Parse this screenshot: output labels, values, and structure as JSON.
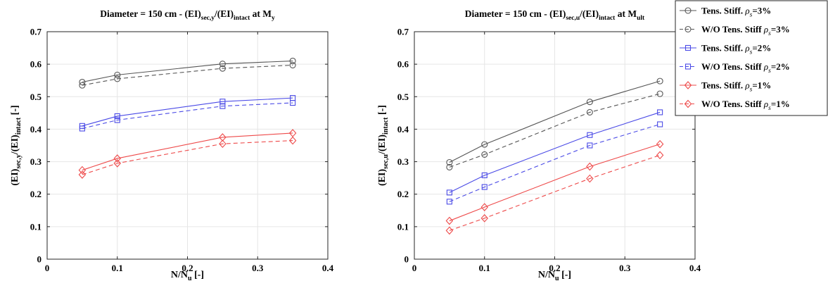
{
  "chart_data": [
    {
      "type": "line",
      "title_main": "Diameter = 150 cm - (EI)",
      "title_sub1": "sec,y",
      "title_mid": "/(EI)",
      "title_sub2": "intact",
      "title_end": " at M",
      "title_sub3": "y",
      "xlabel_main": "N/N",
      "xlabel_sub": "u",
      "xlabel_end": " [-]",
      "ylabel_main": "(EI)",
      "ylabel_sub1": "sec,y",
      "ylabel_mid": "/(EI)",
      "ylabel_sub2": "intact",
      "ylabel_end": " [-]",
      "xlim": [
        0,
        0.4
      ],
      "ylim": [
        0,
        0.7
      ],
      "xticks": [
        "0",
        "0.1",
        "0.2",
        "0.3",
        "0.4"
      ],
      "yticks": [
        "0",
        "0.1",
        "0.2",
        "0.3",
        "0.4",
        "0.5",
        "0.6",
        "0.7"
      ],
      "grid": true,
      "x": [
        0.05,
        0.1,
        0.25,
        0.35
      ],
      "series": [
        {
          "color": "#555555",
          "dash": false,
          "marker": "circle",
          "values": [
            0.545,
            0.567,
            0.601,
            0.61
          ]
        },
        {
          "color": "#555555",
          "dash": true,
          "marker": "circle",
          "values": [
            0.535,
            0.555,
            0.587,
            0.597
          ]
        },
        {
          "color": "#4a4ae6",
          "dash": false,
          "marker": "square",
          "values": [
            0.41,
            0.44,
            0.485,
            0.496
          ]
        },
        {
          "color": "#4a4ae6",
          "dash": true,
          "marker": "square",
          "values": [
            0.402,
            0.428,
            0.471,
            0.481
          ]
        },
        {
          "color": "#ee4a4a",
          "dash": false,
          "marker": "diamond",
          "values": [
            0.274,
            0.31,
            0.375,
            0.388
          ]
        },
        {
          "color": "#ee4a4a",
          "dash": true,
          "marker": "diamond",
          "values": [
            0.26,
            0.295,
            0.355,
            0.365
          ]
        }
      ]
    },
    {
      "type": "line",
      "title_main": "Diameter = 150 cm - (EI)",
      "title_sub1": "sec,u",
      "title_mid": "/(EI)",
      "title_sub2": "intact",
      "title_end": " at M",
      "title_sub3": "ult",
      "xlabel_main": "N/N",
      "xlabel_sub": "u",
      "xlabel_end": " [-]",
      "ylabel_main": "(EI)",
      "ylabel_sub1": "sec,u",
      "ylabel_mid": "/(EI)",
      "ylabel_sub2": "intact",
      "ylabel_end": " [-]",
      "xlim": [
        0,
        0.4
      ],
      "ylim": [
        0,
        0.7
      ],
      "xticks": [
        "0",
        "0.1",
        "0.2",
        "0.3",
        "0.4"
      ],
      "yticks": [
        "0",
        "0.1",
        "0.2",
        "0.3",
        "0.4",
        "0.5",
        "0.6",
        "0.7"
      ],
      "grid": true,
      "legend_placement": "top-right",
      "x": [
        0.05,
        0.1,
        0.25,
        0.35
      ],
      "series": [
        {
          "name_main": "Tens. Stiff. ",
          "name_sub": "s",
          "name_end": "=3%",
          "color": "#555555",
          "dash": false,
          "marker": "circle",
          "values": [
            0.298,
            0.353,
            0.484,
            0.548
          ]
        },
        {
          "name_main": "W/O Tens. Stiff ",
          "name_sub": "s",
          "name_end": "=3%",
          "color": "#555555",
          "dash": true,
          "marker": "circle",
          "values": [
            0.283,
            0.322,
            0.452,
            0.509
          ]
        },
        {
          "name_main": "Tens. Stiff. ",
          "name_sub": "s",
          "name_end": "=2%",
          "color": "#4a4ae6",
          "dash": false,
          "marker": "square",
          "values": [
            0.205,
            0.258,
            0.382,
            0.452
          ]
        },
        {
          "name_main": "W/O Tens. Stiff ",
          "name_sub": "s",
          "name_end": "=2%",
          "color": "#4a4ae6",
          "dash": true,
          "marker": "square",
          "values": [
            0.177,
            0.222,
            0.35,
            0.415
          ]
        },
        {
          "name_main": "Tens. Stiff. ",
          "name_sub": "s",
          "name_end": "=1%",
          "color": "#ee4a4a",
          "dash": false,
          "marker": "diamond",
          "values": [
            0.118,
            0.16,
            0.285,
            0.354
          ]
        },
        {
          "name_main": "W/O Tens. Stiff ",
          "name_sub": "s",
          "name_end": "=1%",
          "color": "#ee4a4a",
          "dash": true,
          "marker": "diamond",
          "values": [
            0.088,
            0.126,
            0.248,
            0.32
          ]
        }
      ]
    }
  ]
}
